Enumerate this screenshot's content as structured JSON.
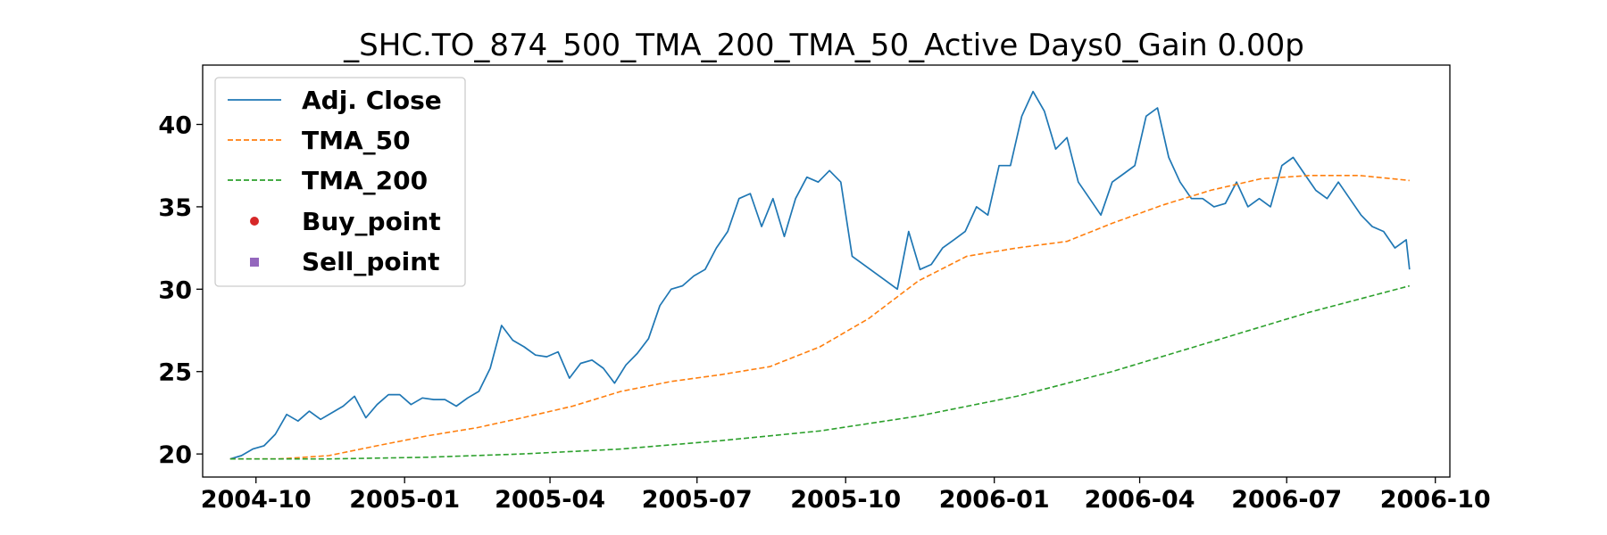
{
  "chart_data": {
    "type": "line",
    "title": "_SHC.TO_874_500_TMA_200_TMA_50_Active Days0_Gain   0.00p",
    "xlabel": "",
    "ylabel": "",
    "x_axis_type": "date",
    "xlim": [
      "2004-08-29",
      "2006-10-10"
    ],
    "ylim": [
      18.6,
      43.6
    ],
    "yticks": [
      20,
      25,
      30,
      35,
      40
    ],
    "xticks": [
      "2004-10",
      "2005-01",
      "2005-04",
      "2005-07",
      "2005-10",
      "2006-01",
      "2006-04",
      "2006-07",
      "2006-10"
    ],
    "grid": false,
    "legend_position": "upper-left",
    "series": [
      {
        "name": "Adj. Close",
        "color": "#1f77b4",
        "style": "solid",
        "x": [
          "2004-09-15",
          "2004-09-22",
          "2004-09-29",
          "2004-10-06",
          "2004-10-13",
          "2004-10-20",
          "2004-10-27",
          "2004-11-03",
          "2004-11-10",
          "2004-11-17",
          "2004-11-24",
          "2004-12-01",
          "2004-12-08",
          "2004-12-15",
          "2004-12-22",
          "2004-12-29",
          "2005-01-05",
          "2005-01-12",
          "2005-01-19",
          "2005-01-26",
          "2005-02-02",
          "2005-02-09",
          "2005-02-16",
          "2005-02-23",
          "2005-03-02",
          "2005-03-09",
          "2005-03-16",
          "2005-03-23",
          "2005-03-30",
          "2005-04-06",
          "2005-04-13",
          "2005-04-20",
          "2005-04-27",
          "2005-05-04",
          "2005-05-11",
          "2005-05-18",
          "2005-05-25",
          "2005-06-01",
          "2005-06-08",
          "2005-06-15",
          "2005-06-22",
          "2005-06-29",
          "2005-07-06",
          "2005-07-13",
          "2005-07-20",
          "2005-07-27",
          "2005-08-03",
          "2005-08-10",
          "2005-08-17",
          "2005-08-24",
          "2005-08-31",
          "2005-09-07",
          "2005-09-14",
          "2005-09-21",
          "2005-09-28",
          "2005-10-05",
          "2005-10-12",
          "2005-10-19",
          "2005-10-26",
          "2005-11-02",
          "2005-11-09",
          "2005-11-16",
          "2005-11-23",
          "2005-11-30",
          "2005-12-07",
          "2005-12-14",
          "2005-12-21",
          "2005-12-28",
          "2006-01-04",
          "2006-01-11",
          "2006-01-18",
          "2006-01-25",
          "2006-02-01",
          "2006-02-08",
          "2006-02-15",
          "2006-02-22",
          "2006-03-01",
          "2006-03-08",
          "2006-03-15",
          "2006-03-22",
          "2006-03-29",
          "2006-04-05",
          "2006-04-12",
          "2006-04-19",
          "2006-04-26",
          "2006-05-03",
          "2006-05-10",
          "2006-05-17",
          "2006-05-24",
          "2006-05-31",
          "2006-06-07",
          "2006-06-14",
          "2006-06-21",
          "2006-06-28",
          "2006-07-05",
          "2006-07-12",
          "2006-07-19",
          "2006-07-26",
          "2006-08-02",
          "2006-08-09",
          "2006-08-16",
          "2006-08-23",
          "2006-08-30",
          "2006-09-06",
          "2006-09-13",
          "2006-09-15"
        ],
        "values": [
          19.7,
          19.9,
          20.3,
          20.5,
          21.2,
          22.4,
          22.0,
          22.6,
          22.1,
          22.5,
          22.9,
          23.5,
          22.2,
          23.0,
          23.6,
          23.6,
          23.0,
          23.4,
          23.3,
          23.3,
          22.9,
          23.4,
          23.8,
          25.2,
          27.8,
          26.9,
          26.5,
          26.0,
          25.9,
          26.2,
          24.6,
          25.5,
          25.7,
          25.2,
          24.3,
          25.4,
          26.1,
          27.0,
          29.0,
          30.0,
          30.2,
          30.8,
          31.2,
          32.5,
          33.5,
          35.5,
          35.8,
          33.8,
          35.5,
          33.2,
          35.5,
          36.8,
          36.5,
          37.2,
          36.5,
          32.0,
          31.5,
          31.0,
          30.5,
          30.0,
          33.5,
          31.2,
          31.5,
          32.5,
          33.0,
          33.5,
          35.0,
          34.5,
          37.5,
          37.5,
          40.5,
          42.0,
          40.8,
          38.5,
          39.2,
          36.5,
          35.5,
          34.5,
          36.5,
          37.0,
          37.5,
          40.5,
          41.0,
          38.0,
          36.5,
          35.5,
          35.5,
          35.0,
          35.2,
          36.5,
          35.0,
          35.5,
          35.0,
          37.5,
          38.0,
          37.0,
          36.0,
          35.5,
          36.5,
          35.5,
          34.5,
          33.8,
          33.5,
          32.5,
          33.0,
          31.2
        ]
      },
      {
        "name": "TMA_50",
        "color": "#ff7f0e",
        "style": "dashed",
        "x": [
          "2004-09-15",
          "2004-10-15",
          "2004-11-15",
          "2004-12-15",
          "2005-01-15",
          "2005-02-15",
          "2005-03-15",
          "2005-04-15",
          "2005-05-15",
          "2005-06-15",
          "2005-07-15",
          "2005-08-15",
          "2005-09-15",
          "2005-10-15",
          "2005-11-15",
          "2005-12-15",
          "2006-01-15",
          "2006-02-15",
          "2006-03-15",
          "2006-04-15",
          "2006-05-15",
          "2006-06-15",
          "2006-07-15",
          "2006-08-15",
          "2006-09-15"
        ],
        "values": [
          19.7,
          19.7,
          19.9,
          20.5,
          21.1,
          21.6,
          22.2,
          22.9,
          23.8,
          24.4,
          24.8,
          25.3,
          26.5,
          28.2,
          30.5,
          32.0,
          32.5,
          32.9,
          34.0,
          35.1,
          36.0,
          36.7,
          36.9,
          36.9,
          36.6
        ]
      },
      {
        "name": "TMA_200",
        "color": "#2ca02c",
        "style": "dashed",
        "x": [
          "2004-09-15",
          "2004-11-15",
          "2005-01-15",
          "2005-03-15",
          "2005-05-15",
          "2005-07-15",
          "2005-09-15",
          "2005-11-15",
          "2006-01-15",
          "2006-03-15",
          "2006-05-15",
          "2006-07-15",
          "2006-09-15"
        ],
        "values": [
          19.7,
          19.7,
          19.8,
          20.0,
          20.3,
          20.8,
          21.4,
          22.3,
          23.5,
          25.0,
          26.8,
          28.6,
          30.2
        ]
      },
      {
        "name": "Buy_point",
        "color": "#d62728",
        "style": "marker-circle",
        "x": [],
        "values": []
      },
      {
        "name": "Sell_point",
        "color": "#9467bd",
        "style": "marker-square",
        "x": [],
        "values": []
      }
    ]
  }
}
